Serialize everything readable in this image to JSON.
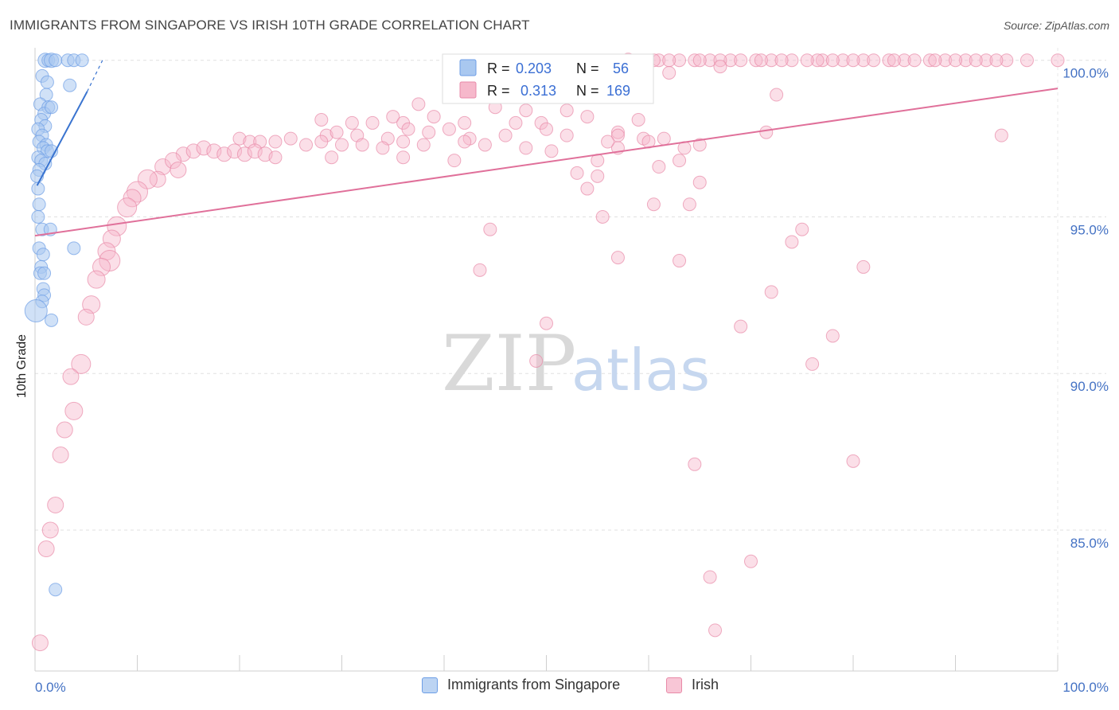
{
  "title": "IMMIGRANTS FROM SINGAPORE VS IRISH 10TH GRADE CORRELATION CHART",
  "source": "Source: ZipAtlas.com",
  "watermark": {
    "zip": "ZIP",
    "atlas": "atlas"
  },
  "legend": {
    "rows": [
      {
        "r_label": "R =",
        "r_value": "0.203",
        "n_label": "N =",
        "n_value": "56",
        "color": "#a9c8f0",
        "border": "#6d9ee6"
      },
      {
        "r_label": "R =",
        "r_value": "0.313",
        "n_label": "N =",
        "n_value": "169",
        "color": "#f6b8cb",
        "border": "#e88aa8"
      }
    ]
  },
  "bottom_legend": [
    {
      "label": "Immigrants from Singapore",
      "color": "#bcd4f3",
      "border": "#6d9ee6"
    },
    {
      "label": "Irish",
      "color": "#f8c6d6",
      "border": "#e88aa8"
    }
  ],
  "chart_data": {
    "type": "scatter",
    "title": "IMMIGRANTS FROM SINGAPORE VS IRISH 10TH GRADE CORRELATION CHART",
    "xlabel": "",
    "ylabel": "10th Grade",
    "xlim": [
      0,
      100
    ],
    "ylim": [
      80.5,
      100.4
    ],
    "x_tick_labels": [
      {
        "value": 0,
        "label": "0.0%"
      },
      {
        "value": 100,
        "label": "100.0%"
      }
    ],
    "y_tick_labels": [
      {
        "value": 100,
        "label": "100.0%"
      },
      {
        "value": 95,
        "label": "95.0%"
      },
      {
        "value": 90,
        "label": "90.0%"
      },
      {
        "value": 85,
        "label": "85.0%"
      }
    ],
    "grid": true,
    "series": [
      {
        "name": "Immigrants from Singapore",
        "color": "#6d9ee6",
        "fill": "#a9c8f0",
        "trend": {
          "x": [
            0.2,
            5.1
          ],
          "y": [
            96.0,
            99.0
          ]
        },
        "trend_dashed": {
          "x": [
            5.1,
            6.6
          ],
          "y": [
            99.0,
            100.0
          ]
        },
        "points": [
          [
            1.0,
            100.0,
            9
          ],
          [
            1.3,
            100.0,
            8
          ],
          [
            1.6,
            100.0,
            9
          ],
          [
            2.0,
            100.0,
            8
          ],
          [
            3.2,
            100.0,
            8
          ],
          [
            3.8,
            100.0,
            8
          ],
          [
            4.6,
            100.0,
            8
          ],
          [
            0.7,
            99.5,
            8
          ],
          [
            1.2,
            99.3,
            8
          ],
          [
            3.4,
            99.2,
            8
          ],
          [
            1.1,
            98.9,
            8
          ],
          [
            0.5,
            98.6,
            8
          ],
          [
            1.3,
            98.5,
            8
          ],
          [
            0.9,
            98.3,
            8
          ],
          [
            1.6,
            98.5,
            8
          ],
          [
            0.6,
            98.1,
            8
          ],
          [
            1.0,
            97.9,
            8
          ],
          [
            0.3,
            97.8,
            8
          ],
          [
            0.7,
            97.6,
            8
          ],
          [
            0.4,
            97.4,
            8
          ],
          [
            1.1,
            97.3,
            8
          ],
          [
            0.8,
            97.2,
            8
          ],
          [
            1.2,
            97.1,
            8
          ],
          [
            1.6,
            97.1,
            8
          ],
          [
            0.3,
            96.9,
            8
          ],
          [
            0.6,
            96.8,
            8
          ],
          [
            1.0,
            96.7,
            8
          ],
          [
            0.4,
            96.5,
            8
          ],
          [
            0.2,
            96.3,
            8
          ],
          [
            0.3,
            95.9,
            8
          ],
          [
            0.4,
            95.4,
            8
          ],
          [
            0.3,
            95.0,
            8
          ],
          [
            0.7,
            94.6,
            8
          ],
          [
            1.5,
            94.6,
            8
          ],
          [
            0.4,
            94.0,
            8
          ],
          [
            3.8,
            94.0,
            8
          ],
          [
            0.8,
            93.8,
            8
          ],
          [
            0.6,
            93.4,
            8
          ],
          [
            0.5,
            93.2,
            8
          ],
          [
            0.9,
            93.2,
            8
          ],
          [
            0.8,
            92.7,
            8
          ],
          [
            0.9,
            92.5,
            8
          ],
          [
            0.7,
            92.3,
            8
          ],
          [
            0.1,
            92.0,
            14
          ],
          [
            1.6,
            91.7,
            8
          ],
          [
            2.0,
            83.1,
            8
          ]
        ]
      },
      {
        "name": "Irish",
        "color": "#e88aa8",
        "fill": "#f6b8cb",
        "trend": {
          "x": [
            0,
            100
          ],
          "y": [
            94.4,
            99.1
          ]
        },
        "points": [
          [
            61.0,
            100.0,
            8
          ],
          [
            63.0,
            100.0,
            8
          ],
          [
            64.5,
            100.0,
            8
          ],
          [
            66.0,
            100.0,
            8
          ],
          [
            68.0,
            100.0,
            8
          ],
          [
            70.5,
            100.0,
            8
          ],
          [
            72.0,
            100.0,
            8
          ],
          [
            74.0,
            100.0,
            8
          ],
          [
            77.0,
            100.0,
            8
          ],
          [
            79.0,
            100.0,
            8
          ],
          [
            81.0,
            100.0,
            8
          ],
          [
            83.5,
            100.0,
            8
          ],
          [
            85.0,
            100.0,
            8
          ],
          [
            87.5,
            100.0,
            8
          ],
          [
            89.0,
            100.0,
            8
          ],
          [
            91.0,
            100.0,
            8
          ],
          [
            93.0,
            100.0,
            8
          ],
          [
            95.0,
            100.0,
            8
          ],
          [
            97.0,
            100.0,
            8
          ],
          [
            100.0,
            100.0,
            8
          ],
          [
            76.5,
            100.0,
            8
          ],
          [
            75.5,
            100.0,
            8
          ],
          [
            73.0,
            100.0,
            8
          ],
          [
            69.0,
            100.0,
            8
          ],
          [
            67.0,
            100.0,
            8
          ],
          [
            65.0,
            100.0,
            8
          ],
          [
            62.0,
            100.0,
            8
          ],
          [
            60.5,
            100.0,
            8
          ],
          [
            80.0,
            100.0,
            8
          ],
          [
            82.0,
            100.0,
            8
          ],
          [
            84.0,
            100.0,
            8
          ],
          [
            86.0,
            100.0,
            8
          ],
          [
            88.0,
            100.0,
            8
          ],
          [
            90.0,
            100.0,
            8
          ],
          [
            92.0,
            100.0,
            8
          ],
          [
            94.0,
            100.0,
            8
          ],
          [
            78.0,
            100.0,
            8
          ],
          [
            71.0,
            100.0,
            8
          ],
          [
            58.0,
            100.0,
            9
          ],
          [
            50.0,
            99.4,
            8
          ],
          [
            55.5,
            99.5,
            8
          ],
          [
            62.0,
            99.6,
            8
          ],
          [
            67.0,
            99.8,
            8
          ],
          [
            44.0,
            99.0,
            8
          ],
          [
            41.0,
            98.9,
            8
          ],
          [
            58.0,
            99.0,
            8
          ],
          [
            72.5,
            98.9,
            8
          ],
          [
            45.0,
            98.5,
            8
          ],
          [
            37.5,
            98.6,
            8
          ],
          [
            48.0,
            98.4,
            8
          ],
          [
            52.0,
            98.4,
            8
          ],
          [
            54.0,
            98.2,
            8
          ],
          [
            59.0,
            98.1,
            8
          ],
          [
            28.0,
            98.1,
            8
          ],
          [
            35.0,
            98.2,
            8
          ],
          [
            39.0,
            98.2,
            8
          ],
          [
            31.0,
            98.0,
            8
          ],
          [
            33.0,
            98.0,
            8
          ],
          [
            36.0,
            98.0,
            8
          ],
          [
            42.0,
            98.0,
            8
          ],
          [
            47.0,
            98.0,
            8
          ],
          [
            49.5,
            98.0,
            8
          ],
          [
            28.5,
            97.6,
            8
          ],
          [
            29.5,
            97.7,
            8
          ],
          [
            31.5,
            97.6,
            8
          ],
          [
            34.5,
            97.5,
            8
          ],
          [
            36.5,
            97.8,
            8
          ],
          [
            38.5,
            97.7,
            8
          ],
          [
            40.5,
            97.8,
            8
          ],
          [
            42.5,
            97.5,
            8
          ],
          [
            46.0,
            97.6,
            8
          ],
          [
            50.0,
            97.8,
            8
          ],
          [
            52.0,
            97.6,
            8
          ],
          [
            57.0,
            97.7,
            8
          ],
          [
            71.5,
            97.7,
            8
          ],
          [
            94.5,
            97.6,
            8
          ],
          [
            20.0,
            97.5,
            8
          ],
          [
            21.0,
            97.4,
            8
          ],
          [
            22.0,
            97.4,
            8
          ],
          [
            23.5,
            97.4,
            8
          ],
          [
            25.0,
            97.5,
            8
          ],
          [
            26.5,
            97.3,
            8
          ],
          [
            28.0,
            97.4,
            8
          ],
          [
            30.0,
            97.3,
            8
          ],
          [
            32.0,
            97.3,
            8
          ],
          [
            34.0,
            97.2,
            8
          ],
          [
            36.0,
            97.4,
            8
          ],
          [
            38.0,
            97.3,
            8
          ],
          [
            42.0,
            97.4,
            8
          ],
          [
            44.0,
            97.3,
            8
          ],
          [
            48.0,
            97.2,
            8
          ],
          [
            50.5,
            97.1,
            8
          ],
          [
            57.0,
            97.2,
            8
          ],
          [
            63.5,
            97.2,
            8
          ],
          [
            65.0,
            97.3,
            8
          ],
          [
            57.0,
            97.6,
            8
          ],
          [
            56.0,
            97.4,
            8
          ],
          [
            14.5,
            97.0,
            9
          ],
          [
            15.5,
            97.1,
            9
          ],
          [
            16.5,
            97.2,
            9
          ],
          [
            17.5,
            97.1,
            9
          ],
          [
            18.5,
            97.0,
            9
          ],
          [
            19.5,
            97.1,
            9
          ],
          [
            20.5,
            97.0,
            9
          ],
          [
            21.5,
            97.1,
            9
          ],
          [
            22.5,
            97.0,
            9
          ],
          [
            23.5,
            96.9,
            8
          ],
          [
            29.0,
            96.9,
            8
          ],
          [
            36.0,
            96.9,
            8
          ],
          [
            41.0,
            96.8,
            8
          ],
          [
            55.0,
            96.8,
            8
          ],
          [
            12.5,
            96.6,
            10
          ],
          [
            13.5,
            96.8,
            10
          ],
          [
            14.0,
            96.5,
            10
          ],
          [
            12.0,
            96.2,
            10
          ],
          [
            11.0,
            96.2,
            12
          ],
          [
            10.0,
            95.8,
            13
          ],
          [
            9.5,
            95.6,
            11
          ],
          [
            9.0,
            95.3,
            12
          ],
          [
            8.0,
            94.7,
            12
          ],
          [
            7.5,
            94.3,
            11
          ],
          [
            7.0,
            93.9,
            11
          ],
          [
            7.3,
            93.6,
            13
          ],
          [
            6.5,
            93.4,
            11
          ],
          [
            6.0,
            93.0,
            11
          ],
          [
            5.5,
            92.2,
            11
          ],
          [
            5.0,
            91.8,
            10
          ],
          [
            4.5,
            90.3,
            12
          ],
          [
            3.5,
            89.9,
            10
          ],
          [
            3.8,
            88.8,
            11
          ],
          [
            2.9,
            88.2,
            10
          ],
          [
            2.5,
            87.4,
            10
          ],
          [
            2.0,
            85.8,
            10
          ],
          [
            1.5,
            85.0,
            10
          ],
          [
            1.1,
            84.4,
            10
          ],
          [
            0.5,
            81.4,
            10
          ],
          [
            59.5,
            97.5,
            8
          ],
          [
            54.0,
            95.9,
            8
          ],
          [
            53.0,
            96.4,
            8
          ],
          [
            55.0,
            96.3,
            8
          ],
          [
            61.0,
            96.6,
            8
          ],
          [
            61.5,
            97.5,
            8
          ],
          [
            60.0,
            97.4,
            8
          ],
          [
            63.0,
            96.8,
            8
          ],
          [
            65.0,
            96.1,
            8
          ],
          [
            64.0,
            95.4,
            8
          ],
          [
            60.5,
            95.4,
            8
          ],
          [
            55.5,
            95.0,
            8
          ],
          [
            57.0,
            93.7,
            8
          ],
          [
            44.5,
            94.6,
            8
          ],
          [
            43.5,
            93.3,
            8
          ],
          [
            50.0,
            91.6,
            8
          ],
          [
            49.0,
            90.4,
            8
          ],
          [
            63.0,
            93.6,
            8
          ],
          [
            64.5,
            87.1,
            8
          ],
          [
            66.0,
            83.5,
            8
          ],
          [
            66.5,
            81.8,
            8
          ],
          [
            69.0,
            91.5,
            8
          ],
          [
            70.0,
            84.0,
            8
          ],
          [
            72.0,
            92.6,
            8
          ],
          [
            74.0,
            94.2,
            8
          ],
          [
            75.0,
            94.6,
            8
          ],
          [
            76.0,
            90.3,
            8
          ],
          [
            78.0,
            91.2,
            8
          ],
          [
            81.0,
            93.4,
            8
          ],
          [
            80.0,
            87.2,
            8
          ]
        ]
      }
    ]
  }
}
